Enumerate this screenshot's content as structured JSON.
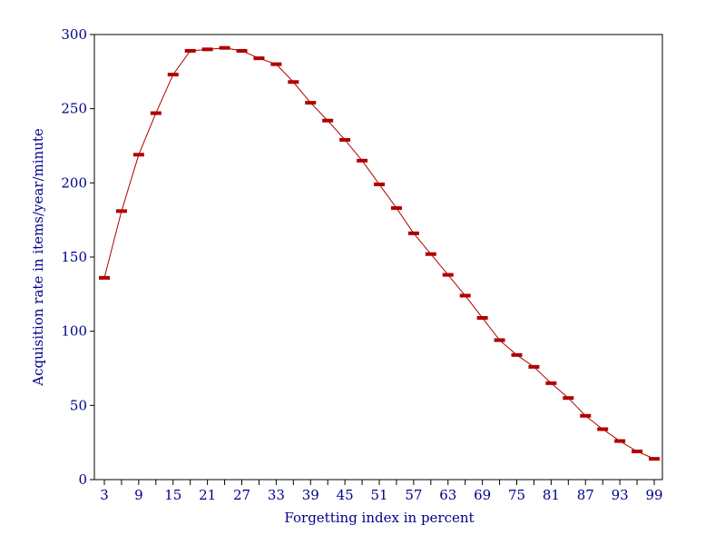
{
  "chart_data": {
    "type": "line",
    "title": "",
    "xlabel": "Forgetting index in percent",
    "ylabel": "Acquisition rate in items/year/minute",
    "xlim": [
      3,
      99
    ],
    "ylim": [
      0,
      300
    ],
    "x_ticks": [
      3,
      9,
      15,
      21,
      27,
      33,
      39,
      45,
      51,
      57,
      63,
      69,
      75,
      81,
      87,
      93,
      99
    ],
    "y_ticks": [
      0,
      50,
      100,
      150,
      200,
      250,
      300
    ],
    "grid": false,
    "legend": "none",
    "colors": {
      "series": "#b00000",
      "axis": "#00008b",
      "frame": "#000000"
    },
    "series": [
      {
        "x": [
          3,
          6,
          9,
          12,
          15,
          18,
          21,
          24,
          27,
          30,
          33,
          36,
          39,
          42,
          45,
          48,
          51,
          54,
          57,
          60,
          63,
          66,
          69,
          72,
          75,
          78,
          81,
          84,
          87,
          90,
          93,
          96,
          99
        ],
        "y": [
          136,
          181,
          219,
          247,
          273,
          289,
          290,
          291,
          289,
          284,
          280,
          268,
          254,
          242,
          229,
          215,
          199,
          183,
          166,
          152,
          138,
          124,
          109,
          94,
          84,
          76,
          65,
          55,
          43,
          34,
          26,
          19,
          14
        ]
      }
    ]
  }
}
